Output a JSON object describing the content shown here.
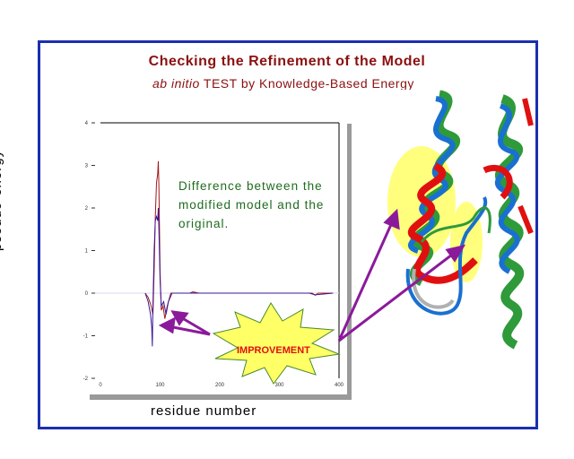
{
  "slide": {
    "title": "Checking the Refinement of the Model",
    "subtitle_italic": "ab initio",
    "subtitle_rest": " TEST by Knowledge-Based Energy",
    "annotation": "Difference between the modified model and the original.",
    "callout": "IMPROVEMENT",
    "colors": {
      "frame": "#1a2fb0",
      "title": "#8b1010",
      "annotation": "#1e6b1e",
      "callout_text": "#e01010",
      "callout_fill": "#ffff66",
      "arrow": "#8b1a9b"
    }
  },
  "chart_data": {
    "type": "line",
    "xlabel": "residue number",
    "ylabel": "pseudo-energy",
    "xlim": [
      0,
      400
    ],
    "ylim": [
      -2,
      4
    ],
    "xticks": [
      "0",
      "100",
      "200",
      "300",
      "400"
    ],
    "yticks": [
      "4",
      "3",
      "2",
      "1",
      "0",
      "-1",
      "-2"
    ],
    "grid": false,
    "series": [
      {
        "color": "#a01818",
        "points": [
          [
            75,
            0
          ],
          [
            80,
            -0.1
          ],
          [
            85,
            -0.3
          ],
          [
            88,
            -0.5
          ],
          [
            90,
            0.5
          ],
          [
            92,
            1.8
          ],
          [
            94,
            2.6
          ],
          [
            96,
            2.8
          ],
          [
            97,
            3.1
          ],
          [
            98,
            2.5
          ],
          [
            100,
            0.5
          ],
          [
            102,
            -0.4
          ],
          [
            105,
            -0.3
          ],
          [
            108,
            -0.6
          ],
          [
            112,
            -0.3
          ],
          [
            118,
            0
          ],
          [
            150,
            0
          ],
          [
            155,
            0.03
          ],
          [
            165,
            0
          ],
          [
            350,
            0
          ],
          [
            355,
            0
          ],
          [
            360,
            -0.05
          ],
          [
            365,
            0
          ],
          [
            390,
            0
          ]
        ]
      },
      {
        "color": "#3a1a9a",
        "points": [
          [
            75,
            0
          ],
          [
            80,
            -0.2
          ],
          [
            84,
            -0.5
          ],
          [
            86,
            -0.8
          ],
          [
            87,
            -1.25
          ],
          [
            88,
            -0.3
          ],
          [
            90,
            1.0
          ],
          [
            92,
            1.7
          ],
          [
            94,
            1.8
          ],
          [
            96,
            1.7
          ],
          [
            97,
            2.0
          ],
          [
            98,
            1.5
          ],
          [
            100,
            0.3
          ],
          [
            102,
            -0.3
          ],
          [
            106,
            -0.2
          ],
          [
            110,
            -0.5
          ],
          [
            114,
            -0.2
          ],
          [
            120,
            0
          ],
          [
            350,
            0
          ],
          [
            360,
            -0.04
          ],
          [
            390,
            0
          ]
        ]
      }
    ]
  }
}
